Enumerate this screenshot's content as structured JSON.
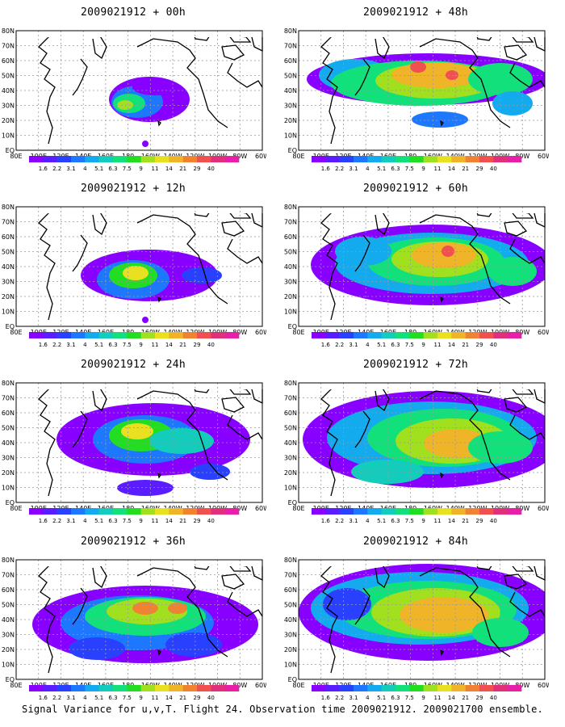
{
  "colorbar": {
    "labels": [
      "1.6",
      "2.2",
      "3.1",
      "4",
      "5.1",
      "6.3",
      "7.5",
      "9",
      "11",
      "14",
      "21",
      "29",
      "40"
    ],
    "colors": [
      "#8800ff",
      "#5a1dff",
      "#2a40ff",
      "#1e78ff",
      "#14aaee",
      "#14ccbb",
      "#12e07a",
      "#22dd22",
      "#a0e01e",
      "#e8e020",
      "#f0b428",
      "#f08232",
      "#f05050",
      "#e0307a",
      "#e820a8"
    ]
  },
  "axes": {
    "lon_labels": [
      "80E",
      "100E",
      "120E",
      "140E",
      "160E",
      "180",
      "160W",
      "140W",
      "120W",
      "100W",
      "80W",
      "60W"
    ],
    "lat_labels": [
      "80N",
      "70N",
      "60N",
      "50N",
      "40N",
      "30N",
      "20N",
      "10N",
      "EQ"
    ]
  },
  "panels": [
    {
      "title": "2009021912 + 00h"
    },
    {
      "title": "2009021912 + 48h"
    },
    {
      "title": "2009021912 + 12h"
    },
    {
      "title": "2009021912 + 60h"
    },
    {
      "title": "2009021912 + 24h"
    },
    {
      "title": "2009021912 + 72h"
    },
    {
      "title": "2009021912 + 36h"
    },
    {
      "title": "2009021912 + 84h"
    }
  ],
  "footer": "Signal Variance for u,v,T. Flight 24. Observation time 2009021912. 2009021700 ensemble."
}
